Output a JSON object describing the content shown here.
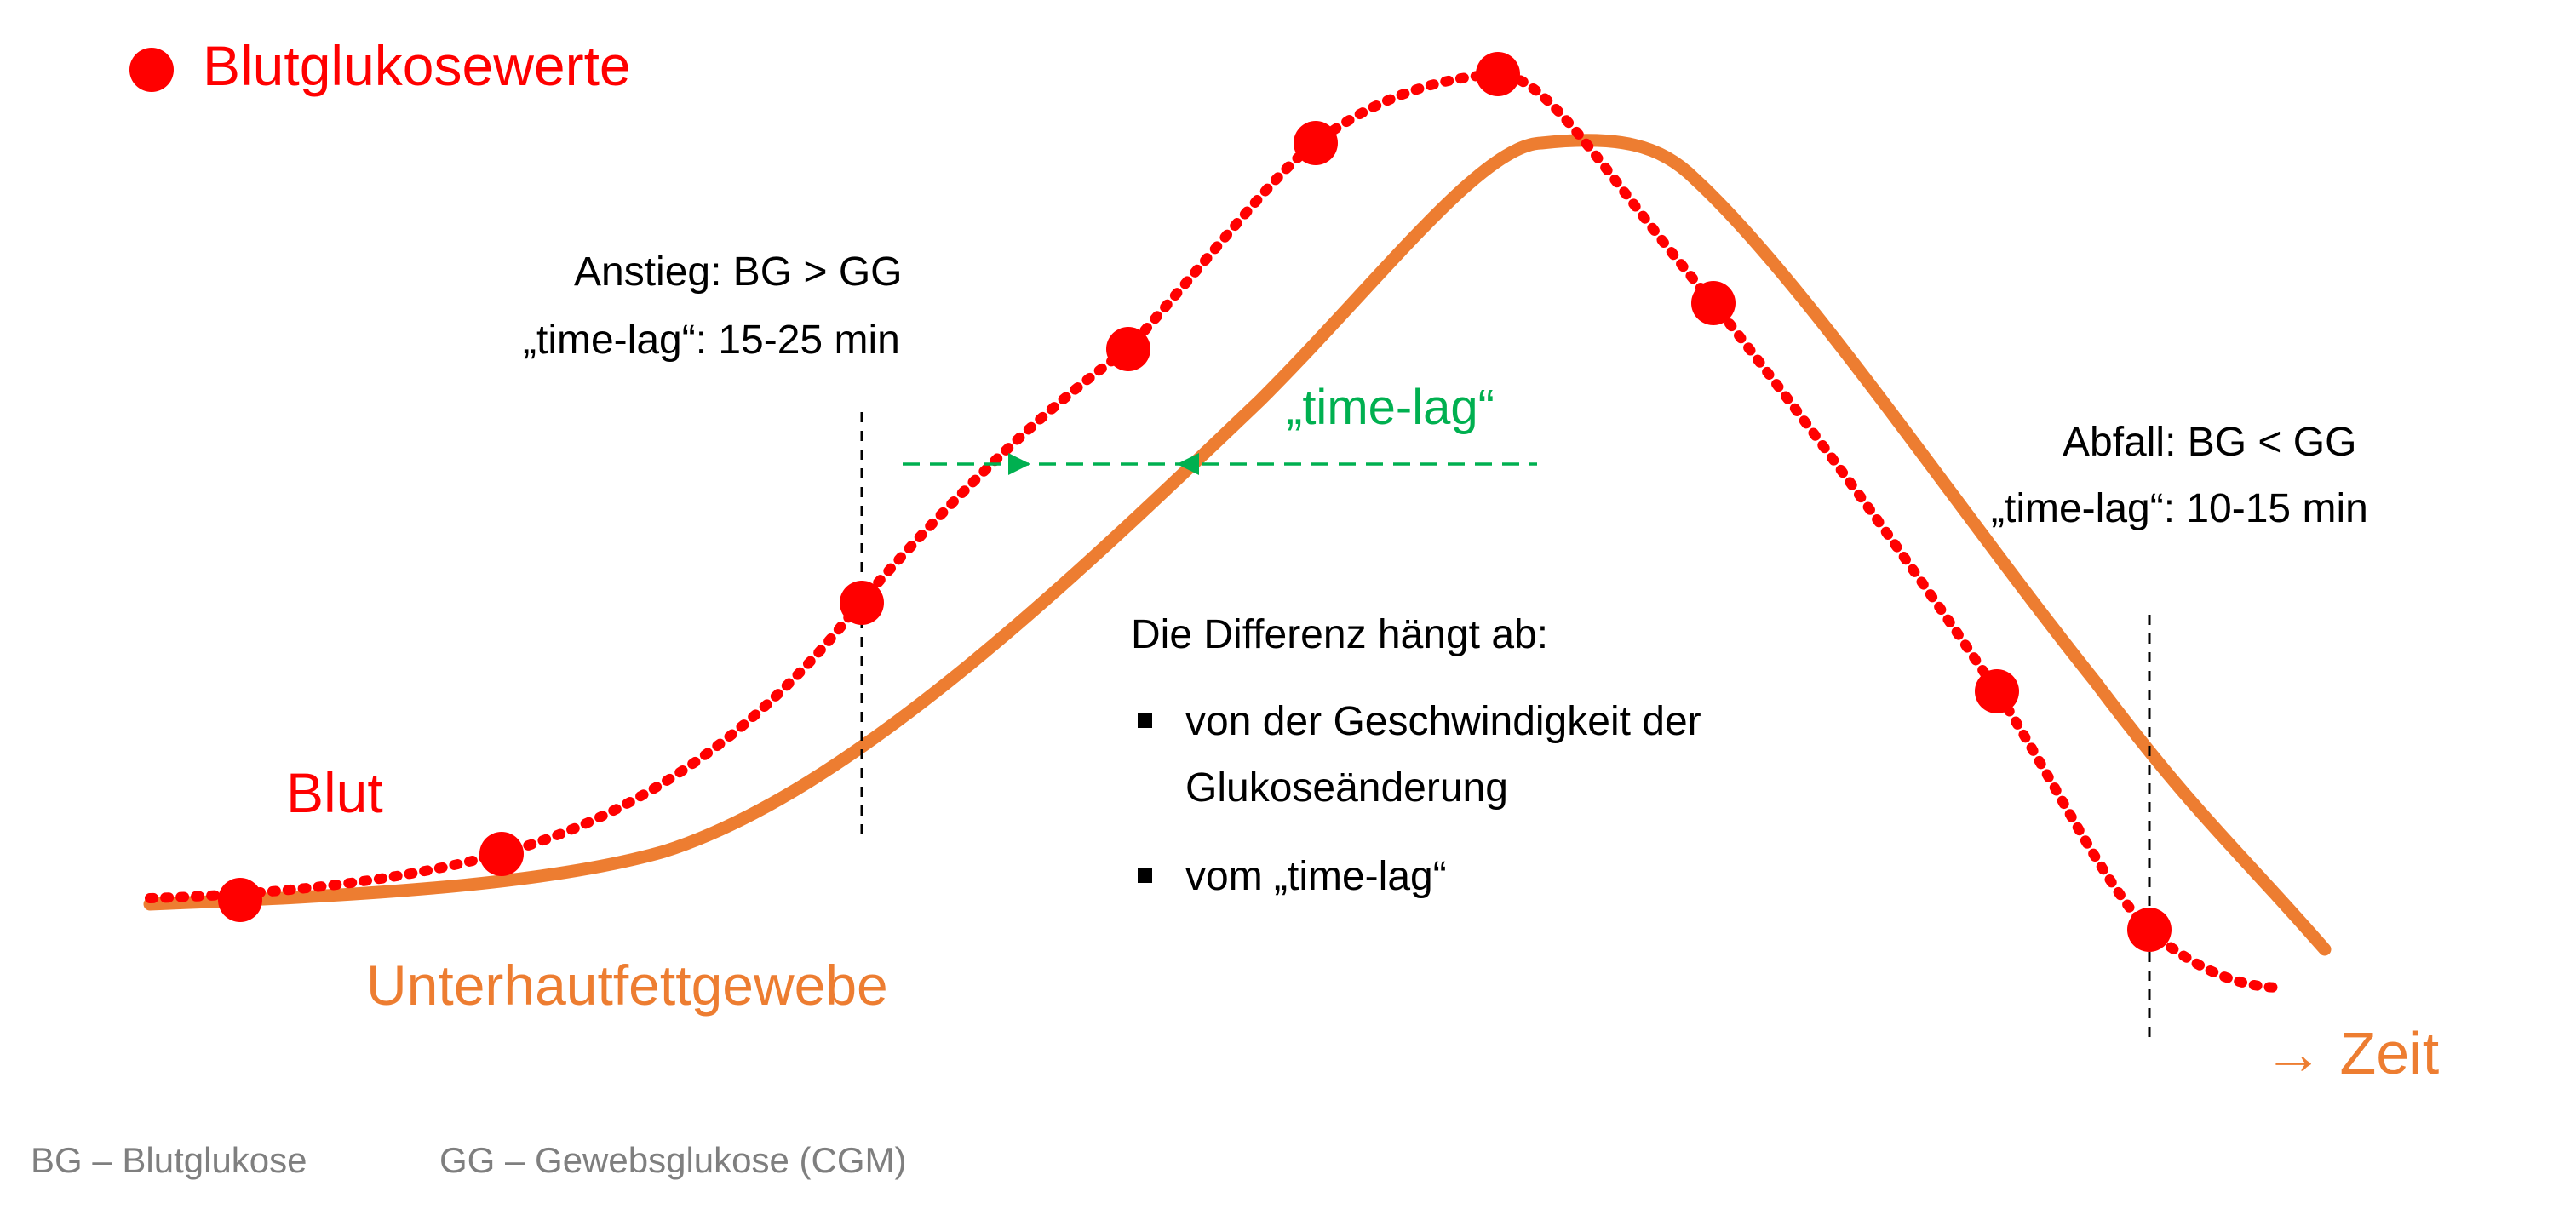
{
  "legend": {
    "marker_label": "Blutglukosewerte",
    "marker_color": "#ff0000"
  },
  "labels": {
    "blood": "Blut",
    "tissue": "Unterhautfettgewebe",
    "time_axis": "→ Zeit",
    "time_lag": "„time-lag“"
  },
  "annotations": {
    "rise": {
      "line1": "Anstieg: BG > GG",
      "line2": "„time-lag“: 15-25 min"
    },
    "fall": {
      "line1": "Abfall: BG < GG",
      "line2": "„time-lag“: 10-15 min"
    }
  },
  "info": {
    "heading": "Die Differenz hängt ab:",
    "bullets": [
      {
        "line1": "von der Geschwindigkeit der",
        "line2": "Glukoseänderung"
      },
      {
        "line1": "vom „time-lag“",
        "line2": ""
      }
    ]
  },
  "footer": {
    "bg_abbrev": "BG – Blutglukose",
    "gg_abbrev": "GG – Gewebsglukose (CGM)"
  },
  "colors": {
    "blood": "#ff0000",
    "tissue": "#ed7d31",
    "time_lag": "#00b050",
    "text": "#000000",
    "footer_text": "#7f7f7f",
    "guides": "#000000"
  }
}
